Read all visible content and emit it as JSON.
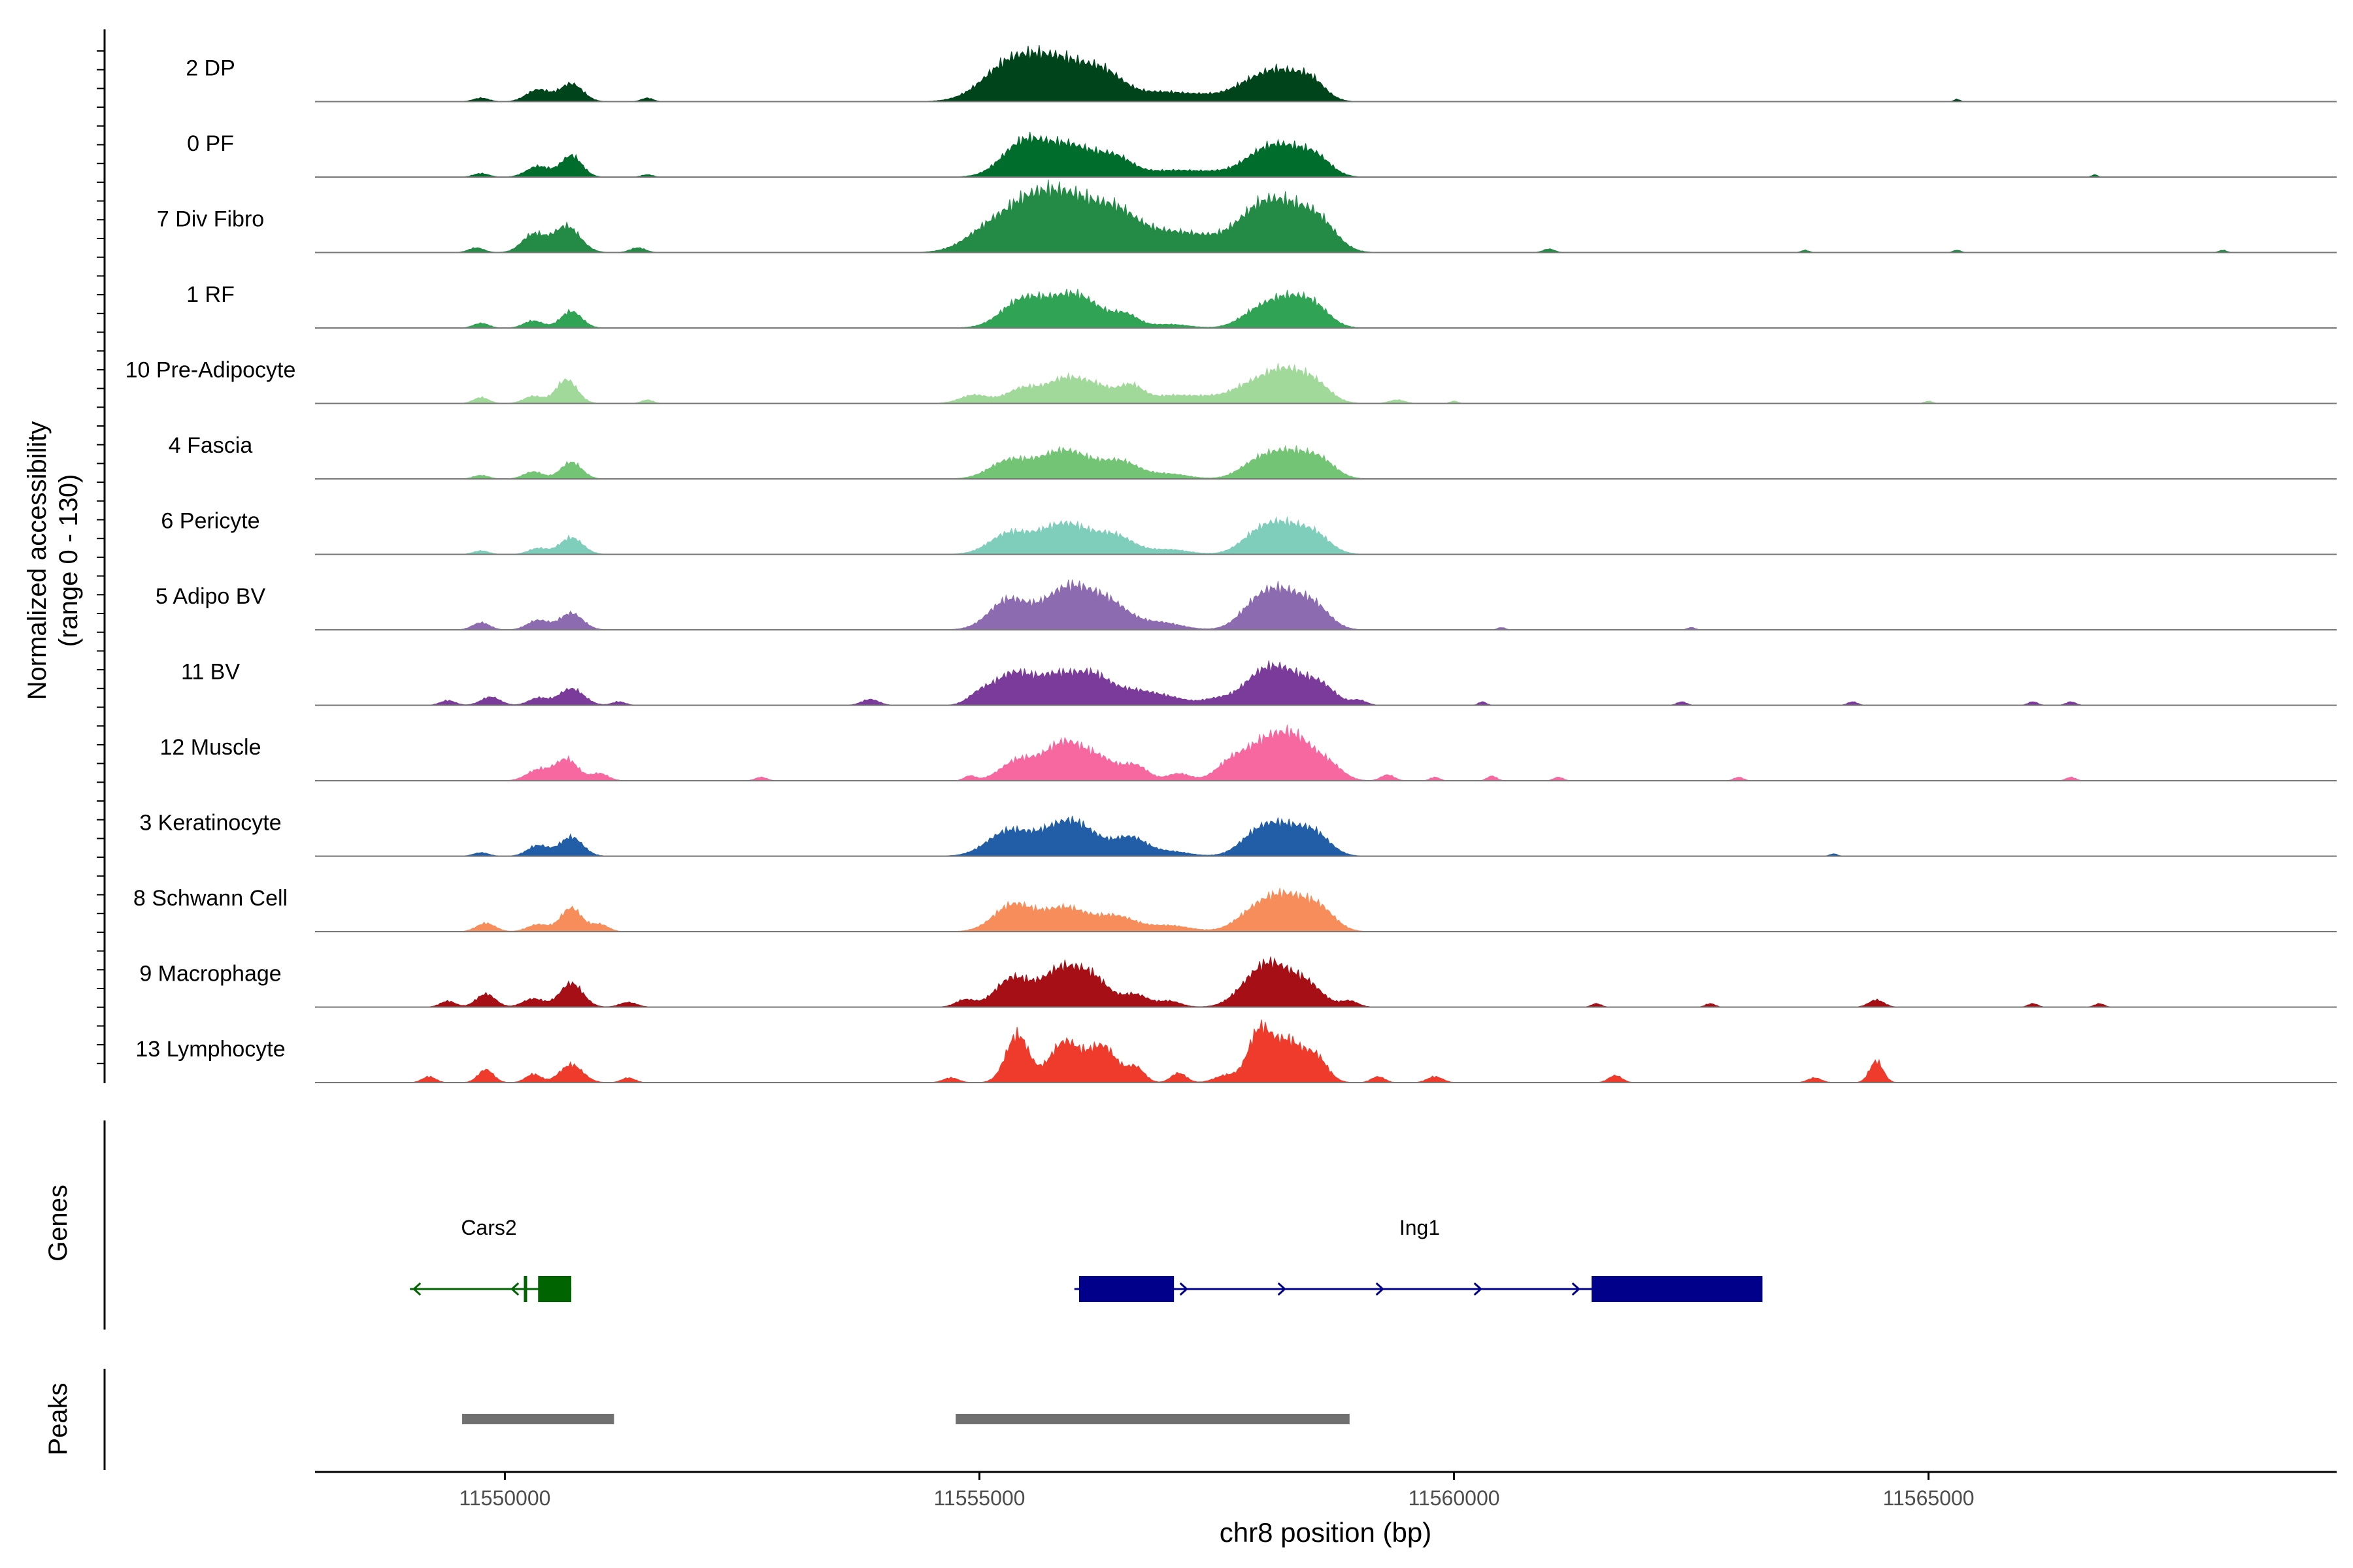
{
  "chart_data": {
    "type": "area",
    "title": "",
    "ylabel_line1": "Normalized accessibility",
    "ylabel_line2": "(range 0 - 130)",
    "ylim": [
      0,
      130
    ],
    "xlabel": "chr8 position (bp)",
    "xlim": [
      11548000,
      11569300
    ],
    "x_ticks": [
      11550000,
      11555000,
      11560000,
      11565000
    ],
    "x_tick_labels": [
      "11550000",
      "11555000",
      "11560000",
      "11565000"
    ],
    "tracks": [
      {
        "label": "2 DP",
        "color": "#00441b",
        "peaks": [
          [
            11549750,
            3,
            80
          ],
          [
            11550350,
            10,
            120
          ],
          [
            11550700,
            15,
            120
          ],
          [
            11551500,
            3,
            60
          ],
          [
            11555300,
            26,
            280
          ],
          [
            11555850,
            34,
            350
          ],
          [
            11556350,
            14,
            200
          ],
          [
            11556900,
            7,
            250
          ],
          [
            11557400,
            5,
            250
          ],
          [
            11557800,
            8,
            180
          ],
          [
            11558150,
            25,
            230
          ],
          [
            11558500,
            14,
            150
          ],
          [
            11565300,
            2,
            30
          ]
        ]
      },
      {
        "label": "0 PF",
        "color": "#006d2c",
        "peaks": [
          [
            11549750,
            3,
            80
          ],
          [
            11550350,
            9,
            120
          ],
          [
            11550700,
            18,
            110
          ],
          [
            11551500,
            2,
            60
          ],
          [
            11555450,
            26,
            220
          ],
          [
            11555950,
            26,
            280
          ],
          [
            11556450,
            13,
            180
          ],
          [
            11557000,
            5,
            250
          ],
          [
            11557500,
            4,
            250
          ],
          [
            11557900,
            10,
            180
          ],
          [
            11558200,
            24,
            220
          ],
          [
            11558550,
            14,
            160
          ],
          [
            11566750,
            2,
            30
          ]
        ]
      },
      {
        "label": "7 Div Fibro",
        "color": "#238b45",
        "peaks": [
          [
            11549700,
            4,
            80
          ],
          [
            11550300,
            15,
            120
          ],
          [
            11550650,
            22,
            140
          ],
          [
            11551400,
            4,
            80
          ],
          [
            11555100,
            18,
            250
          ],
          [
            11555550,
            38,
            260
          ],
          [
            11556000,
            38,
            260
          ],
          [
            11556450,
            26,
            220
          ],
          [
            11556900,
            14,
            300
          ],
          [
            11557400,
            10,
            300
          ],
          [
            11557900,
            24,
            220
          ],
          [
            11558250,
            34,
            250
          ],
          [
            11558600,
            18,
            180
          ],
          [
            11561000,
            3,
            60
          ],
          [
            11563700,
            2,
            40
          ],
          [
            11565300,
            2,
            40
          ],
          [
            11568100,
            2,
            40
          ]
        ]
      },
      {
        "label": "1 RF",
        "color": "#31a354",
        "peaks": [
          [
            11549750,
            4,
            80
          ],
          [
            11550300,
            6,
            100
          ],
          [
            11550700,
            14,
            110
          ],
          [
            11555450,
            22,
            220
          ],
          [
            11556000,
            28,
            270
          ],
          [
            11556550,
            9,
            130
          ],
          [
            11557000,
            3,
            200
          ],
          [
            11557900,
            10,
            180
          ],
          [
            11558250,
            24,
            220
          ],
          [
            11558550,
            12,
            160
          ]
        ]
      },
      {
        "label": "10 Pre-Adipocyte",
        "color": "#a1d99b",
        "peaks": [
          [
            11549750,
            5,
            80
          ],
          [
            11550300,
            6,
            100
          ],
          [
            11550650,
            20,
            110
          ],
          [
            11551500,
            3,
            60
          ],
          [
            11554950,
            7,
            150
          ],
          [
            11555450,
            12,
            170
          ],
          [
            11555900,
            20,
            200
          ],
          [
            11556250,
            12,
            170
          ],
          [
            11556600,
            14,
            130
          ],
          [
            11557000,
            6,
            200
          ],
          [
            11557400,
            5,
            200
          ],
          [
            11557800,
            10,
            180
          ],
          [
            11558200,
            28,
            230
          ],
          [
            11558550,
            12,
            160
          ],
          [
            11559400,
            3,
            80
          ],
          [
            11560000,
            2,
            40
          ],
          [
            11565000,
            2,
            40
          ]
        ]
      },
      {
        "label": "4 Fascia",
        "color": "#74c476",
        "peaks": [
          [
            11549750,
            3,
            80
          ],
          [
            11550300,
            6,
            100
          ],
          [
            11550700,
            14,
            110
          ],
          [
            11555300,
            14,
            200
          ],
          [
            11555900,
            24,
            280
          ],
          [
            11556500,
            13,
            190
          ],
          [
            11557000,
            4,
            200
          ],
          [
            11557900,
            10,
            180
          ],
          [
            11558250,
            22,
            230
          ],
          [
            11558600,
            12,
            160
          ]
        ]
      },
      {
        "label": "6 Pericyte",
        "color": "#7fcdbb",
        "peaks": [
          [
            11549750,
            3,
            80
          ],
          [
            11550350,
            5,
            100
          ],
          [
            11550700,
            14,
            120
          ],
          [
            11555300,
            16,
            200
          ],
          [
            11555900,
            26,
            280
          ],
          [
            11556450,
            13,
            190
          ],
          [
            11557000,
            4,
            200
          ],
          [
            11557900,
            10,
            180
          ],
          [
            11558200,
            24,
            230
          ],
          [
            11558550,
            12,
            160
          ]
        ]
      },
      {
        "label": "5 Adipo BV",
        "color": "#8c6bb1",
        "peaks": [
          [
            11549750,
            6,
            90
          ],
          [
            11550350,
            8,
            110
          ],
          [
            11550700,
            14,
            120
          ],
          [
            11555300,
            24,
            200
          ],
          [
            11555950,
            36,
            270
          ],
          [
            11556400,
            16,
            200
          ],
          [
            11556900,
            6,
            220
          ],
          [
            11557900,
            14,
            180
          ],
          [
            11558200,
            30,
            230
          ],
          [
            11558550,
            14,
            160
          ],
          [
            11560500,
            2,
            40
          ],
          [
            11562500,
            2,
            40
          ]
        ]
      },
      {
        "label": "11 BV",
        "color": "#7a3b9a",
        "peaks": [
          [
            11549400,
            4,
            80
          ],
          [
            11549850,
            7,
            100
          ],
          [
            11550350,
            6,
            100
          ],
          [
            11550700,
            14,
            130
          ],
          [
            11551200,
            3,
            70
          ],
          [
            11553850,
            5,
            90
          ],
          [
            11555000,
            8,
            120
          ],
          [
            11555350,
            26,
            200
          ],
          [
            11555800,
            22,
            200
          ],
          [
            11556200,
            24,
            200
          ],
          [
            11556650,
            10,
            190
          ],
          [
            11557000,
            6,
            200
          ],
          [
            11557500,
            5,
            150
          ],
          [
            11557900,
            14,
            180
          ],
          [
            11558200,
            28,
            230
          ],
          [
            11558600,
            14,
            160
          ],
          [
            11559000,
            4,
            80
          ],
          [
            11560300,
            3,
            40
          ],
          [
            11562400,
            3,
            50
          ],
          [
            11564200,
            3,
            50
          ],
          [
            11566100,
            3,
            50
          ],
          [
            11566500,
            3,
            50
          ]
        ]
      },
      {
        "label": "12 Muscle",
        "color": "#f768a1",
        "peaks": [
          [
            11550350,
            9,
            120
          ],
          [
            11550650,
            18,
            120
          ],
          [
            11551000,
            6,
            90
          ],
          [
            11552700,
            3,
            60
          ],
          [
            11554900,
            4,
            60
          ],
          [
            11555400,
            16,
            180
          ],
          [
            11555900,
            32,
            220
          ],
          [
            11556300,
            14,
            170
          ],
          [
            11556650,
            12,
            130
          ],
          [
            11557100,
            6,
            120
          ],
          [
            11557650,
            14,
            160
          ],
          [
            11558000,
            28,
            200
          ],
          [
            11558350,
            32,
            200
          ],
          [
            11558700,
            10,
            140
          ],
          [
            11559300,
            5,
            70
          ],
          [
            11559800,
            3,
            50
          ],
          [
            11560400,
            4,
            50
          ],
          [
            11561100,
            3,
            50
          ],
          [
            11563000,
            3,
            50
          ],
          [
            11566500,
            3,
            50
          ]
        ]
      },
      {
        "label": "3 Keratinocyte",
        "color": "#225ea8",
        "peaks": [
          [
            11549750,
            3,
            80
          ],
          [
            11550350,
            9,
            110
          ],
          [
            11550700,
            16,
            120
          ],
          [
            11555300,
            20,
            220
          ],
          [
            11555950,
            30,
            280
          ],
          [
            11556600,
            14,
            160
          ],
          [
            11557000,
            4,
            200
          ],
          [
            11557900,
            12,
            180
          ],
          [
            11558200,
            24,
            230
          ],
          [
            11558550,
            14,
            160
          ],
          [
            11564000,
            2,
            40
          ]
        ]
      },
      {
        "label": "8 Schwann Cell",
        "color": "#f78d5a",
        "peaks": [
          [
            11549800,
            7,
            100
          ],
          [
            11550350,
            6,
            110
          ],
          [
            11550700,
            20,
            110
          ],
          [
            11551000,
            6,
            90
          ],
          [
            11555350,
            22,
            200
          ],
          [
            11555900,
            20,
            240
          ],
          [
            11556450,
            12,
            200
          ],
          [
            11557000,
            5,
            220
          ],
          [
            11557900,
            14,
            200
          ],
          [
            11558250,
            28,
            230
          ],
          [
            11558600,
            14,
            160
          ]
        ]
      },
      {
        "label": "9 Macrophage",
        "color": "#a50f15",
        "peaks": [
          [
            11549400,
            5,
            80
          ],
          [
            11549800,
            11,
            100
          ],
          [
            11550300,
            7,
            110
          ],
          [
            11550700,
            20,
            120
          ],
          [
            11551300,
            4,
            90
          ],
          [
            11554850,
            6,
            100
          ],
          [
            11555350,
            24,
            180
          ],
          [
            11555850,
            30,
            200
          ],
          [
            11556200,
            22,
            180
          ],
          [
            11556650,
            10,
            130
          ],
          [
            11557000,
            5,
            120
          ],
          [
            11557850,
            14,
            180
          ],
          [
            11558100,
            30,
            190
          ],
          [
            11558450,
            18,
            170
          ],
          [
            11558900,
            5,
            90
          ],
          [
            11561500,
            3,
            50
          ],
          [
            11562700,
            3,
            50
          ],
          [
            11564450,
            6,
            80
          ],
          [
            11566100,
            3,
            50
          ],
          [
            11566800,
            3,
            50
          ]
        ]
      },
      {
        "label": "13 Lymphocyte",
        "color": "#ef3b2c",
        "peaks": [
          [
            11549200,
            5,
            70
          ],
          [
            11549800,
            11,
            80
          ],
          [
            11550300,
            7,
            80
          ],
          [
            11550700,
            15,
            120
          ],
          [
            11551300,
            4,
            70
          ],
          [
            11554700,
            4,
            80
          ],
          [
            11555400,
            40,
            120
          ],
          [
            11555900,
            34,
            160
          ],
          [
            11556300,
            30,
            150
          ],
          [
            11556650,
            12,
            90
          ],
          [
            11557100,
            8,
            80
          ],
          [
            11557600,
            6,
            120
          ],
          [
            11557950,
            42,
            120
          ],
          [
            11558250,
            34,
            150
          ],
          [
            11558550,
            20,
            120
          ],
          [
            11559200,
            5,
            70
          ],
          [
            11559800,
            5,
            80
          ],
          [
            11561700,
            6,
            70
          ],
          [
            11563800,
            4,
            70
          ],
          [
            11564450,
            18,
            70
          ]
        ]
      }
    ],
    "genes": {
      "label": "Genes",
      "items": [
        {
          "name": "Cars2",
          "color": "#006400",
          "strand": "-",
          "start": 11549000,
          "end": 11550700,
          "exons": [
            [
              11550350,
              11550700
            ],
            [
              11550200,
              11550230
            ]
          ]
        },
        {
          "name": "Ing1",
          "color": "#00008b",
          "strand": "+",
          "start": 11556000,
          "end": 11563250,
          "exons": [
            [
              11556050,
              11557050
            ],
            [
              11561450,
              11563250
            ]
          ]
        }
      ]
    },
    "peaks_track": {
      "label": "Peaks",
      "color": "#707070",
      "regions": [
        [
          11549550,
          11551150
        ],
        [
          11554750,
          11558900
        ]
      ]
    }
  }
}
